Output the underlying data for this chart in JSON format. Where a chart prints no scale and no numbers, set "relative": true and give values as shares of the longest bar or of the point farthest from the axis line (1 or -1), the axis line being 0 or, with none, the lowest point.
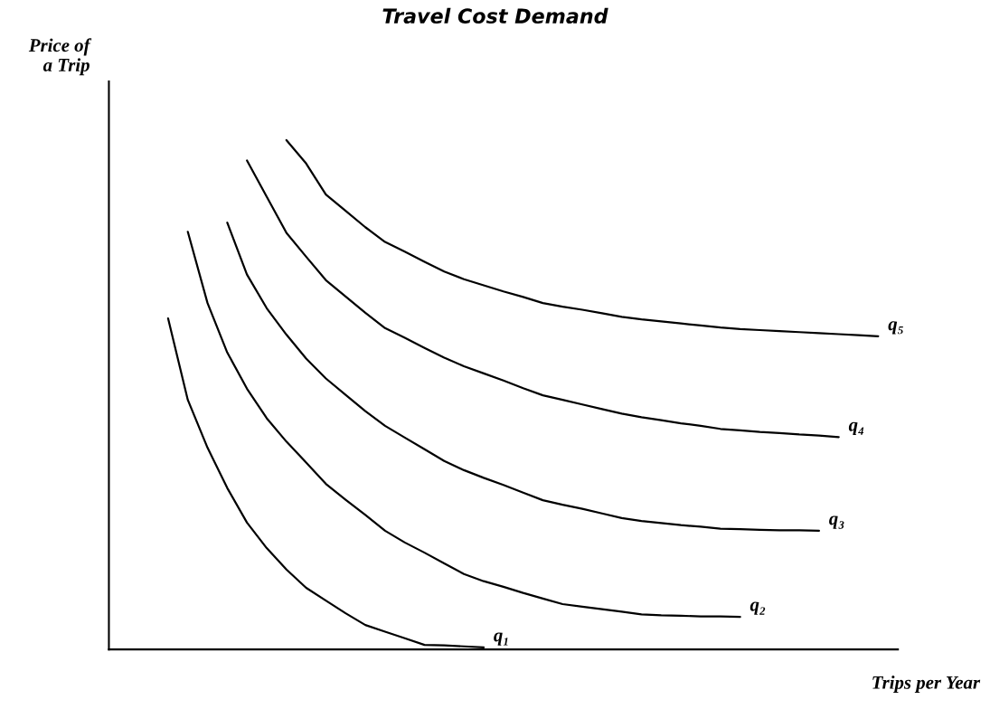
{
  "chart_data": {
    "type": "line",
    "title": "Travel Cost Demand",
    "xlabel": "Trips per Year",
    "ylabel": "Price of\na Trip",
    "relative": true,
    "legend": false,
    "marker": "none",
    "line_style": "solid",
    "categories": [
      null,
      null,
      null,
      null,
      null,
      null,
      null,
      null,
      null,
      null,
      null,
      null,
      null,
      null,
      null,
      null,
      null,
      null,
      null,
      null,
      null,
      null,
      null,
      null,
      null,
      null,
      null,
      null,
      null,
      null,
      null,
      null,
      null,
      null,
      null,
      null,
      null,
      null,
      null,
      null,
      null
    ],
    "series": [
      {
        "name": "q₁",
        "color": "#000000",
        "values": [
          null,
          null,
          null,
          0.65,
          0.49,
          0.396,
          0.317,
          0.249,
          0.199,
          0.157,
          0.121,
          0.096,
          0.071,
          0.048,
          0.035,
          0.022,
          0.009,
          0.008,
          0.006,
          0.004,
          null,
          null,
          null,
          null,
          null,
          null,
          null,
          null,
          null,
          null,
          null,
          null,
          null,
          null,
          null,
          null,
          null,
          null,
          null,
          null,
          null
        ]
      },
      {
        "name": "q₂",
        "color": "#000000",
        "values": [
          null,
          null,
          null,
          null,
          0.82,
          0.68,
          0.583,
          0.512,
          0.454,
          0.408,
          0.367,
          0.325,
          0.294,
          0.264,
          0.233,
          0.21,
          0.19,
          0.169,
          0.148,
          0.134,
          0.123,
          0.111,
          0.1,
          0.089,
          0.084,
          0.079,
          0.074,
          0.069,
          0.067,
          0.066,
          0.065,
          0.065,
          0.064,
          null,
          null,
          null,
          null,
          null,
          null,
          null,
          null
        ]
      },
      {
        "name": "q₃",
        "color": "#000000",
        "values": [
          null,
          null,
          null,
          null,
          null,
          null,
          0.838,
          0.736,
          0.67,
          0.618,
          0.571,
          0.532,
          0.5,
          0.468,
          0.439,
          0.416,
          0.393,
          0.37,
          0.352,
          0.337,
          0.323,
          0.308,
          0.293,
          0.284,
          0.276,
          0.267,
          0.258,
          0.252,
          0.248,
          0.244,
          0.241,
          0.237,
          0.236,
          0.235,
          0.234,
          0.234,
          0.233,
          null,
          null,
          null,
          null
        ]
      },
      {
        "name": "q₄",
        "color": "#000000",
        "values": [
          null,
          null,
          null,
          null,
          null,
          null,
          null,
          0.96,
          0.889,
          0.818,
          0.771,
          0.725,
          0.693,
          0.661,
          0.631,
          0.612,
          0.592,
          0.573,
          0.556,
          0.542,
          0.528,
          0.513,
          0.499,
          0.49,
          0.481,
          0.472,
          0.463,
          0.456,
          0.45,
          0.444,
          0.439,
          0.433,
          0.43,
          0.427,
          0.425,
          0.422,
          0.42,
          0.417,
          null,
          null,
          null
        ]
      },
      {
        "name": "q₅",
        "color": "#000000",
        "values": [
          null,
          null,
          null,
          null,
          null,
          null,
          null,
          null,
          null,
          1,
          0.954,
          0.893,
          0.861,
          0.829,
          0.8,
          0.781,
          0.761,
          0.742,
          0.727,
          0.715,
          0.703,
          0.692,
          0.68,
          0.673,
          0.667,
          0.66,
          0.653,
          0.648,
          0.644,
          0.64,
          0.636,
          0.632,
          0.629,
          0.627,
          0.625,
          0.623,
          0.621,
          0.619,
          0.617,
          0.615,
          null
        ]
      }
    ]
  }
}
